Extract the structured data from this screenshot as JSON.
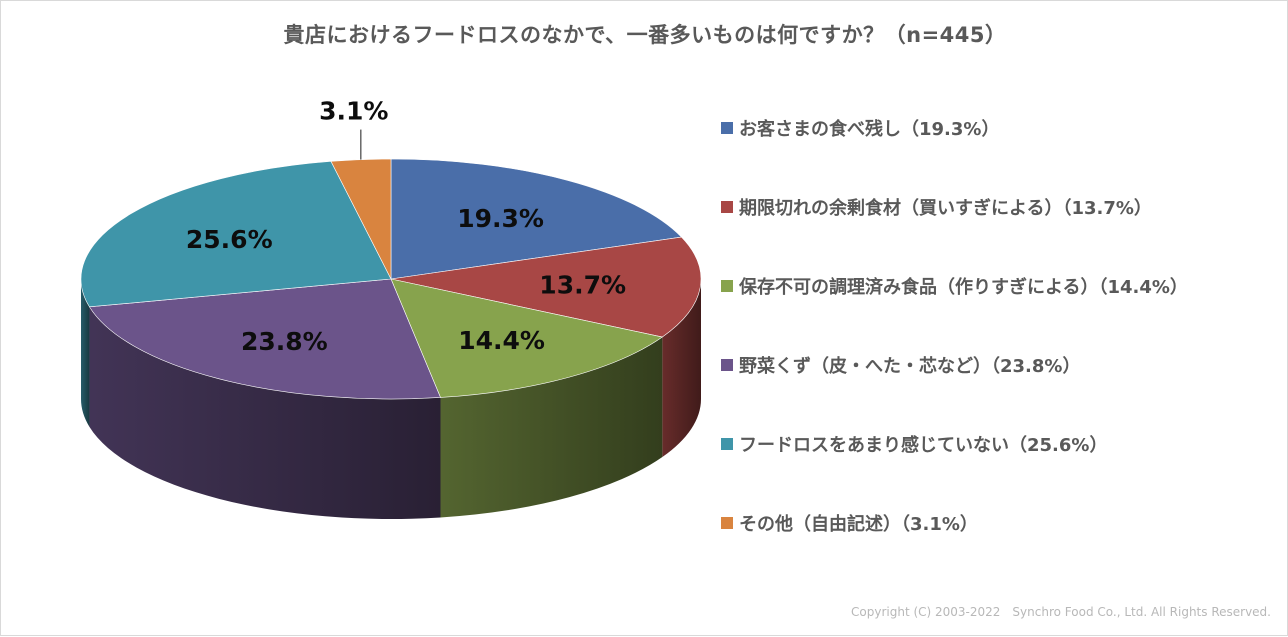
{
  "title": "貴店におけるフードロスのなかで、一番多いものは何ですか？（n=445）",
  "copyright": "Copyright (C) 2003-2022　Synchro Food Co., Ltd. All Rights Reserved.",
  "chart_data": {
    "type": "pie",
    "title": "貴店におけるフードロスのなかで、一番多いものは何ですか？（n=445）",
    "legend_position": "right",
    "style": "3d",
    "slices": [
      {
        "label": "お客さまの食べ残し",
        "value": 19.3,
        "value_label": "19.3%",
        "legend": "お客さまの食べ残し（19.3%）",
        "color": "#4a6ea9"
      },
      {
        "label": "期限切れの余剰食材（買いすぎによる）",
        "value": 13.7,
        "value_label": "13.7%",
        "legend": "期限切れの余剰食材（買いすぎによる）（13.7%）",
        "color": "#a84745"
      },
      {
        "label": "保存不可の調理済み食品（作りすぎによる）",
        "value": 14.4,
        "value_label": "14.4%",
        "legend": "保存不可の調理済み食品（作りすぎによる）（14.4%）",
        "color": "#87a34d"
      },
      {
        "label": "野菜くず（皮・へた・芯など）",
        "value": 23.8,
        "value_label": "23.8%",
        "legend": "野菜くず（皮・へた・芯など）（23.8%）",
        "color": "#6b548a"
      },
      {
        "label": "フードロスをあまり感じていない",
        "value": 25.6,
        "value_label": "25.6%",
        "legend": "フードロスをあまり感じていない（25.6%）",
        "color": "#3f95a9"
      },
      {
        "label": "その他（自由記述）",
        "value": 3.1,
        "value_label": "3.1%",
        "legend": "その他（自由記述）（3.1%）",
        "color": "#d9843f"
      }
    ]
  }
}
